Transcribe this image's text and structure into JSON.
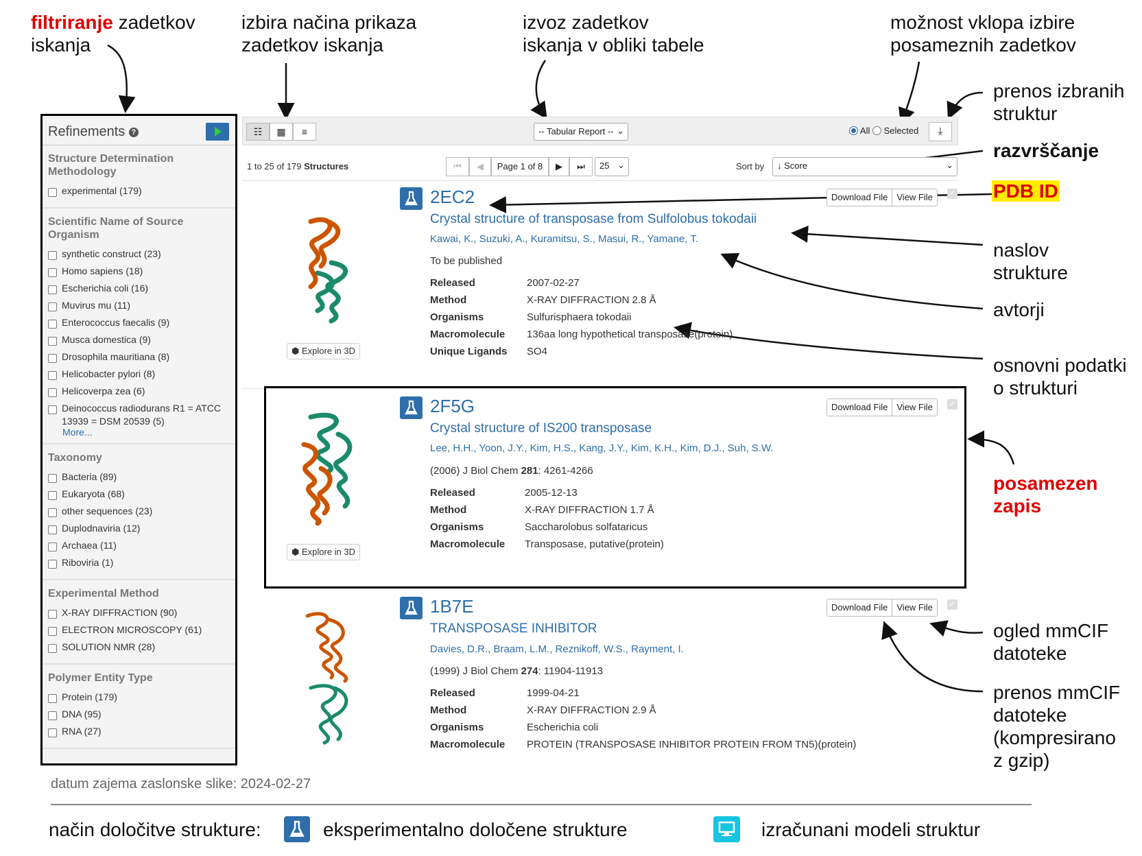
{
  "annotations": {
    "filter_red": "filtriranje",
    "filter_rest": " zadetkov",
    "filter_line2": "iskanja",
    "view_line1": "izbira načina prikaza",
    "view_line2": "zadetkov iskanja",
    "export_line1": "izvoz zadetkov",
    "export_line2": "iskanja v obliki tabele",
    "select_line1": "možnost vklopa izbire",
    "select_line2": "posameznih zadetkov",
    "transfer_line1": "prenos izbranih",
    "transfer_line2": "struktur",
    "sort": "razvrščanje",
    "pdbid": "PDB ID",
    "title_line1": "naslov",
    "title_line2": "strukture",
    "authors": "avtorji",
    "basic_line1": "osnovni podatki",
    "basic_line2": "o strukturi",
    "record_line1": "posamezen",
    "record_line2": "zapis",
    "view_cif_line1": "ogled mmCIF",
    "view_cif_line2": "datoteke",
    "dl_cif_line1": "prenos mmCIF",
    "dl_cif_line2": "datoteke",
    "dl_cif_line3": "(kompresirano",
    "dl_cif_line4": "z gzip)",
    "capture_date": "datum zajema zaslonske slike: 2024-02-27",
    "legend_label": "način določitve strukture:",
    "legend_exp": "eksperimentalno določene strukture",
    "legend_comp": "izračunani modeli struktur"
  },
  "sidebar": {
    "title": "Refinements",
    "help_icon": "?",
    "sections": [
      {
        "title": "Structure Determination Methodology",
        "options": [
          "experimental (179)"
        ]
      },
      {
        "title": "Scientific Name of Source Organism",
        "options": [
          "synthetic construct (23)",
          "Homo sapiens (18)",
          "Escherichia coli (16)",
          "Muvirus mu (11)",
          "Enterococcus faecalis (9)",
          "Musca domestica (9)",
          "Drosophila mauritiana (8)",
          "Helicobacter pylori (8)",
          "Helicoverpa zea (6)",
          "Deinococcus radiodurans R1 = ATCC 13939 = DSM 20539 (5)"
        ],
        "more": "More..."
      },
      {
        "title": "Taxonomy",
        "options": [
          "Bacteria (89)",
          "Eukaryota (68)",
          "other sequences (23)",
          "Duplodnaviria (12)",
          "Archaea (11)",
          "Riboviria (1)"
        ]
      },
      {
        "title": "Experimental Method",
        "options": [
          "X-RAY DIFFRACTION (90)",
          "ELECTRON MICROSCOPY (61)",
          "SOLUTION NMR (28)"
        ]
      },
      {
        "title": "Polymer Entity Type",
        "options": [
          "Protein (179)",
          "DNA (95)",
          "RNA (27)"
        ]
      }
    ]
  },
  "toolbar": {
    "report_select": "-- Tabular Report --",
    "radio_all": "All",
    "radio_selected": "Selected"
  },
  "pagebar": {
    "count_prefix": "1 to 25 of 179",
    "count_suffix": "Structures",
    "page_label": "Page 1 of 8",
    "per_page": "25",
    "sort_label": "Sort by",
    "sort_value": "↓ Score"
  },
  "results": [
    {
      "id": "2EC2",
      "title": "Crystal structure of transposase from Sulfolobus tokodaii",
      "authors": "Kawai, K., Suzuki, A., Kuramitsu, S., Masui, R., Yamane, T.",
      "citation_plain": "To be published",
      "released": "2007-02-27",
      "method": "X-RAY DIFFRACTION 2.8 Å",
      "organisms": "Sulfurisphaera tokodaii",
      "macromolecule": "136aa long hypothetical transposase",
      "macro_suffix": " (protein)",
      "ligands": "SO4"
    },
    {
      "id": "2F5G",
      "title": "Crystal structure of IS200 transposase",
      "authors": "Lee, H.H., Yoon, J.Y., Kim, H.S., Kang, J.Y., Kim, K.H., Kim, D.J., Suh, S.W.",
      "cite_pre": "(2006) J Biol Chem ",
      "cite_vol": "281",
      "cite_post": ": 4261-4266",
      "released": "2005-12-13",
      "method": "X-RAY DIFFRACTION 1.7 Å",
      "organisms": "Saccharolobus solfataricus",
      "macromolecule": "Transposase, putative",
      "macro_suffix": " (protein)"
    },
    {
      "id": "1B7E",
      "title": "TRANSPOSASE INHIBITOR",
      "authors": "Davies, D.R., Braam, L.M., Reznikoff, W.S., Rayment, I.",
      "cite_pre": "(1999) J Biol Chem ",
      "cite_vol": "274",
      "cite_post": ": 11904-11913",
      "released": "1999-04-21",
      "method": "X-RAY DIFFRACTION 2.9 Å",
      "organisms": "Escherichia coli",
      "macromolecule": "PROTEIN (TRANSPOSASE INHIBITOR PROTEIN FROM TN5)",
      "macro_suffix": " (protein)"
    }
  ],
  "labels": {
    "released": "Released",
    "method": "Method",
    "organisms": "Organisms",
    "macromolecule": "Macromolecule",
    "ligands": "Unique Ligands",
    "download_file": "Download File",
    "view_file": "View File",
    "explore": "Explore in 3D"
  },
  "colors": {
    "accent": "#2f6eab",
    "annotation_red": "#e00000",
    "highlight": "#ffeb00",
    "computed": "#17c5e0"
  }
}
